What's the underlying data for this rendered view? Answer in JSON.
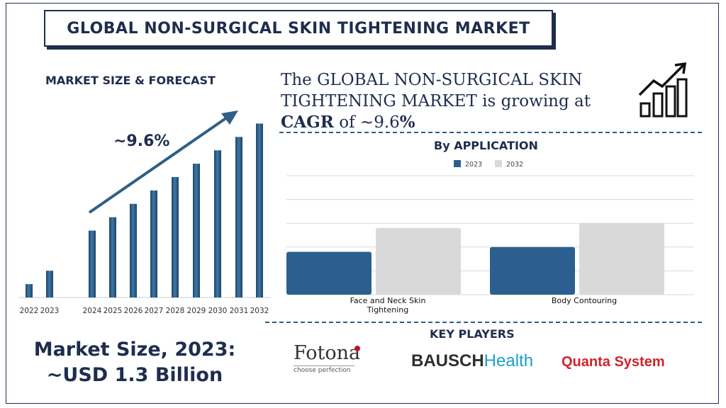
{
  "title": "GLOBAL NON-SURGICAL SKIN TIGHTENING MARKET",
  "forecast_label": "MARKET SIZE & FORECAST",
  "cagr_label": "~9.6%",
  "headline": {
    "line1": "The GLOBAL NON-SURGICAL SKIN",
    "line2": "TIGHTENING MARKET is growing at",
    "cagr_word": "CAGR",
    "of": " of ~",
    "cagr_value": "9.6",
    "percent": "%"
  },
  "application_title": "By APPLICATION",
  "key_players_title": "KEY PLAYERS",
  "market_size": {
    "line1": "Market Size, 2023:",
    "line2": "~USD 1.3 Billion"
  },
  "players": {
    "fotona": "Fotona",
    "fotona_tagline": "choose perfection",
    "bausch_a": "BAUSCH",
    "bausch_b": "Health",
    "quanta": "Quanta System"
  },
  "colors": {
    "navy": "#1f2d4d",
    "bar_blue": "#2b5f8f",
    "bar_gray": "#d9d9d9",
    "arrow": "#2f5f85"
  },
  "icons": [
    "growth-chart-icon"
  ],
  "chart_data": [
    {
      "type": "bar",
      "categories": [
        "2022",
        "2023",
        "2024",
        "2025",
        "2026",
        "2027",
        "2028",
        "2029",
        "2030",
        "2031",
        "2032"
      ],
      "values": [
        1.0,
        2.0,
        5.0,
        6.0,
        7.0,
        8.0,
        9.0,
        10.0,
        11.0,
        12.0,
        13.0
      ],
      "title": "",
      "xlabel": "",
      "ylabel": "",
      "ylim": [
        0,
        13.5
      ],
      "grid": false,
      "annotation": "~9.6%"
    },
    {
      "type": "bar",
      "categories": [
        "Face and Neck Skin Tightening",
        "Body Contouring"
      ],
      "series": [
        {
          "name": "2023",
          "values": [
            1.8,
            2.0
          ]
        },
        {
          "name": "2032",
          "values": [
            2.8,
            3.0
          ]
        }
      ],
      "title": "By APPLICATION",
      "xlabel": "",
      "ylabel": "",
      "ylim": [
        0,
        5
      ],
      "grid": true,
      "legend": "top-center"
    }
  ]
}
